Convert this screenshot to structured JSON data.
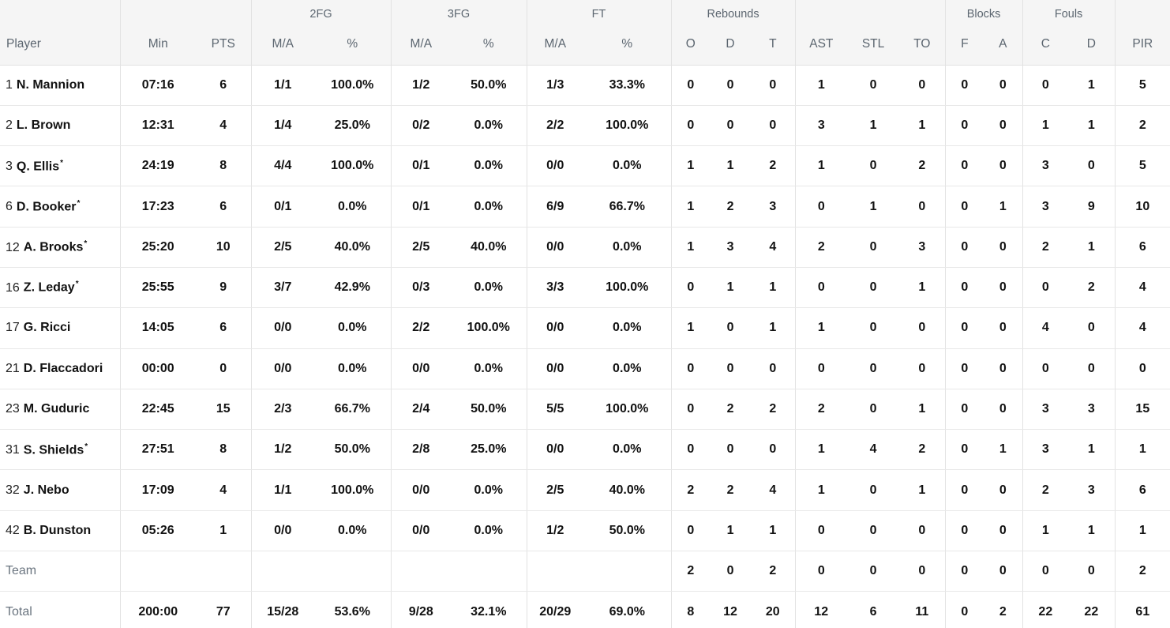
{
  "colors": {
    "header_bg": "#f5f5f5",
    "header_text": "#5c6670",
    "grid_line": "#e2e2e2",
    "row_line": "#e8e8e8",
    "body_text": "#121212",
    "muted_text": "#6b7580"
  },
  "header": {
    "groups": [
      {
        "label": "",
        "span": 1
      },
      {
        "label": "",
        "span": 2
      },
      {
        "label": "2FG",
        "span": 2
      },
      {
        "label": "3FG",
        "span": 2
      },
      {
        "label": "FT",
        "span": 2
      },
      {
        "label": "Rebounds",
        "span": 3
      },
      {
        "label": "",
        "span": 3
      },
      {
        "label": "Blocks",
        "span": 2
      },
      {
        "label": "Fouls",
        "span": 2
      },
      {
        "label": "",
        "span": 1
      }
    ],
    "columns": [
      "Player",
      "Min",
      "PTS",
      "M/A",
      "%",
      "M/A",
      "%",
      "M/A",
      "%",
      "O",
      "D",
      "T",
      "AST",
      "STL",
      "TO",
      "F",
      "A",
      "C",
      "D",
      "PIR"
    ]
  },
  "starter_mark": "*",
  "stat_keys": [
    "min",
    "pts",
    "2fg-ma",
    "2fg-pct",
    "3fg-ma",
    "3fg-pct",
    "ft-ma",
    "ft-pct",
    "reb-o",
    "reb-d",
    "reb-t",
    "ast",
    "stl",
    "to",
    "blk-f",
    "blk-a",
    "foul-c",
    "foul-d",
    "pir"
  ],
  "rows": [
    {
      "number": "1",
      "name": "N. Mannion",
      "starter": false,
      "stats": [
        "07:16",
        "6",
        "1/1",
        "100.0%",
        "1/2",
        "50.0%",
        "1/3",
        "33.3%",
        "0",
        "0",
        "0",
        "1",
        "0",
        "0",
        "0",
        "0",
        "0",
        "1",
        "5"
      ]
    },
    {
      "number": "2",
      "name": "L. Brown",
      "starter": false,
      "stats": [
        "12:31",
        "4",
        "1/4",
        "25.0%",
        "0/2",
        "0.0%",
        "2/2",
        "100.0%",
        "0",
        "0",
        "0",
        "3",
        "1",
        "1",
        "0",
        "0",
        "1",
        "1",
        "2"
      ]
    },
    {
      "number": "3",
      "name": "Q. Ellis",
      "starter": true,
      "stats": [
        "24:19",
        "8",
        "4/4",
        "100.0%",
        "0/1",
        "0.0%",
        "0/0",
        "0.0%",
        "1",
        "1",
        "2",
        "1",
        "0",
        "2",
        "0",
        "0",
        "3",
        "0",
        "5"
      ]
    },
    {
      "number": "6",
      "name": "D. Booker",
      "starter": true,
      "stats": [
        "17:23",
        "6",
        "0/1",
        "0.0%",
        "0/1",
        "0.0%",
        "6/9",
        "66.7%",
        "1",
        "2",
        "3",
        "0",
        "1",
        "0",
        "0",
        "1",
        "3",
        "9",
        "10"
      ]
    },
    {
      "number": "12",
      "name": "A. Brooks",
      "starter": true,
      "stats": [
        "25:20",
        "10",
        "2/5",
        "40.0%",
        "2/5",
        "40.0%",
        "0/0",
        "0.0%",
        "1",
        "3",
        "4",
        "2",
        "0",
        "3",
        "0",
        "0",
        "2",
        "1",
        "6"
      ]
    },
    {
      "number": "16",
      "name": "Z. Leday",
      "starter": true,
      "stats": [
        "25:55",
        "9",
        "3/7",
        "42.9%",
        "0/3",
        "0.0%",
        "3/3",
        "100.0%",
        "0",
        "1",
        "1",
        "0",
        "0",
        "1",
        "0",
        "0",
        "0",
        "2",
        "4"
      ]
    },
    {
      "number": "17",
      "name": "G. Ricci",
      "starter": false,
      "stats": [
        "14:05",
        "6",
        "0/0",
        "0.0%",
        "2/2",
        "100.0%",
        "0/0",
        "0.0%",
        "1",
        "0",
        "1",
        "1",
        "0",
        "0",
        "0",
        "0",
        "4",
        "0",
        "4"
      ]
    },
    {
      "number": "21",
      "name": "D. Flaccadori",
      "starter": false,
      "stats": [
        "00:00",
        "0",
        "0/0",
        "0.0%",
        "0/0",
        "0.0%",
        "0/0",
        "0.0%",
        "0",
        "0",
        "0",
        "0",
        "0",
        "0",
        "0",
        "0",
        "0",
        "0",
        "0"
      ]
    },
    {
      "number": "23",
      "name": "M. Guduric",
      "starter": false,
      "stats": [
        "22:45",
        "15",
        "2/3",
        "66.7%",
        "2/4",
        "50.0%",
        "5/5",
        "100.0%",
        "0",
        "2",
        "2",
        "2",
        "0",
        "1",
        "0",
        "0",
        "3",
        "3",
        "15"
      ]
    },
    {
      "number": "31",
      "name": "S. Shields",
      "starter": true,
      "stats": [
        "27:51",
        "8",
        "1/2",
        "50.0%",
        "2/8",
        "25.0%",
        "0/0",
        "0.0%",
        "0",
        "0",
        "0",
        "1",
        "4",
        "2",
        "0",
        "1",
        "3",
        "1",
        "1"
      ]
    },
    {
      "number": "32",
      "name": "J. Nebo",
      "starter": false,
      "stats": [
        "17:09",
        "4",
        "1/1",
        "100.0%",
        "0/0",
        "0.0%",
        "2/5",
        "40.0%",
        "2",
        "2",
        "4",
        "1",
        "0",
        "1",
        "0",
        "0",
        "2",
        "3",
        "6"
      ]
    },
    {
      "number": "42",
      "name": "B. Dunston",
      "starter": false,
      "stats": [
        "05:26",
        "1",
        "0/0",
        "0.0%",
        "0/0",
        "0.0%",
        "1/2",
        "50.0%",
        "0",
        "1",
        "1",
        "0",
        "0",
        "0",
        "0",
        "0",
        "1",
        "1",
        "1"
      ]
    }
  ],
  "team_row": {
    "label": "Team",
    "stats": [
      "",
      "",
      "",
      "",
      "",
      "",
      "",
      "",
      "2",
      "0",
      "2",
      "0",
      "0",
      "0",
      "0",
      "0",
      "0",
      "0",
      "2"
    ]
  },
  "total_row": {
    "label": "Total",
    "stats": [
      "200:00",
      "77",
      "15/28",
      "53.6%",
      "9/28",
      "32.1%",
      "20/29",
      "69.0%",
      "8",
      "12",
      "20",
      "12",
      "6",
      "11",
      "0",
      "2",
      "22",
      "22",
      "61"
    ]
  }
}
